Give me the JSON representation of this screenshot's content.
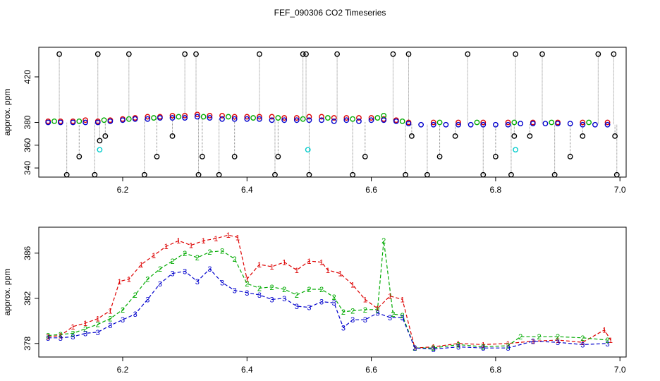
{
  "title": "FEF_090306  CO2 Timeseries",
  "colors": {
    "s1": "#dd0000",
    "s2": "#00aa00",
    "s3": "#0000cc",
    "ref": "#000000",
    "cal": "#00cccc",
    "conn": "#888888"
  },
  "chart_data": [
    {
      "type": "scatter",
      "title": "",
      "xlabel": "",
      "ylabel": "approx. ppm",
      "xlim": [
        6.065,
        7.01
      ],
      "ylim": [
        332,
        446
      ],
      "xticks": [
        "6.2",
        "6.4",
        "6.6",
        "6.8",
        "7.0"
      ],
      "xtick_values": [
        6.2,
        6.4,
        6.6,
        6.8,
        7.0
      ],
      "yticks": [
        "340",
        "360",
        "380",
        "420"
      ],
      "ytick_values": [
        340,
        360,
        380,
        420
      ],
      "series": [
        {
          "marker": "circle",
          "color": "#dd0000",
          "x": [
            6.08,
            6.1,
            6.12,
            6.14,
            6.16,
            6.18,
            6.2,
            6.22,
            6.24,
            6.26,
            6.28,
            6.3,
            6.32,
            6.34,
            6.36,
            6.38,
            6.4,
            6.42,
            6.44,
            6.46,
            6.48,
            6.5,
            6.52,
            6.54,
            6.56,
            6.58,
            6.6,
            6.62,
            6.64,
            6.66,
            6.7,
            6.74,
            6.78,
            6.82,
            6.86,
            6.9,
            6.94,
            6.98
          ],
          "y": [
            381,
            381,
            381,
            382,
            381,
            382,
            383,
            384,
            385,
            385,
            386,
            386,
            387,
            386,
            386,
            385,
            385,
            385,
            385,
            384,
            384,
            385,
            385,
            384,
            384,
            384,
            384,
            383,
            382,
            380,
            380,
            380,
            380,
            380,
            380,
            380,
            380,
            380
          ]
        },
        {
          "marker": "circle",
          "color": "#00aa00",
          "x": [
            6.09,
            6.13,
            6.17,
            6.21,
            6.25,
            6.29,
            6.33,
            6.37,
            6.41,
            6.45,
            6.49,
            6.53,
            6.57,
            6.61,
            6.62,
            6.65,
            6.71,
            6.77,
            6.83,
            6.89,
            6.95
          ],
          "y": [
            381,
            381,
            382,
            383,
            384,
            385,
            385,
            385,
            384,
            384,
            383,
            384,
            383,
            384,
            386,
            381,
            380,
            380,
            380,
            380,
            380
          ]
        },
        {
          "marker": "circle",
          "color": "#0000cc",
          "x": [
            6.08,
            6.1,
            6.12,
            6.14,
            6.16,
            6.18,
            6.2,
            6.22,
            6.24,
            6.26,
            6.28,
            6.3,
            6.32,
            6.34,
            6.36,
            6.38,
            6.4,
            6.42,
            6.44,
            6.46,
            6.48,
            6.5,
            6.52,
            6.54,
            6.56,
            6.58,
            6.6,
            6.62,
            6.64,
            6.66,
            6.68,
            6.7,
            6.72,
            6.74,
            6.76,
            6.78,
            6.8,
            6.82,
            6.84,
            6.86,
            6.88,
            6.9,
            6.92,
            6.94,
            6.96,
            6.98
          ],
          "y": [
            380,
            380,
            380,
            380,
            380,
            381,
            382,
            383,
            383,
            384,
            384,
            384,
            385,
            384,
            383,
            383,
            383,
            383,
            382,
            382,
            382,
            382,
            382,
            381,
            382,
            381,
            382,
            382,
            381,
            379,
            378,
            378,
            378,
            378,
            378,
            378,
            378,
            378,
            379,
            379,
            379,
            379,
            379,
            378,
            378,
            378
          ]
        },
        {
          "marker": "circle",
          "color": "#000000",
          "x": [
            6.098,
            6.11,
            6.13,
            6.155,
            6.16,
            6.163,
            6.172,
            6.21,
            6.235,
            6.255,
            6.28,
            6.3,
            6.318,
            6.322,
            6.328,
            6.355,
            6.38,
            6.42,
            6.445,
            6.45,
            6.49,
            6.495,
            6.5,
            6.545,
            6.57,
            6.59,
            6.635,
            6.655,
            6.66,
            6.665,
            6.69,
            6.71,
            6.735,
            6.755,
            6.78,
            6.8,
            6.825,
            6.83,
            6.832,
            6.855,
            6.875,
            6.895,
            6.92,
            6.94,
            6.965,
            6.99,
            6.992,
            6.995
          ],
          "y": [
            440,
            334,
            350,
            334,
            440,
            364,
            368,
            440,
            334,
            350,
            368,
            440,
            440,
            334,
            350,
            334,
            350,
            440,
            334,
            350,
            440,
            440,
            334,
            440,
            334,
            350,
            440,
            334,
            440,
            368,
            334,
            350,
            368,
            440,
            334,
            350,
            334,
            368,
            440,
            368,
            440,
            334,
            350,
            368,
            440,
            440,
            368,
            334
          ]
        },
        {
          "marker": "circle",
          "color": "#00cccc",
          "x": [
            6.163,
            6.498,
            6.832
          ],
          "y": [
            356,
            356,
            356
          ]
        }
      ]
    },
    {
      "type": "line",
      "title": "",
      "xlabel": "",
      "ylabel": "approx. ppm",
      "xlim": [
        6.065,
        7.01
      ],
      "ylim": [
        376.8,
        388.3
      ],
      "xticks": [
        "6.2",
        "6.4",
        "6.6",
        "6.8",
        "7.0"
      ],
      "xtick_values": [
        6.2,
        6.4,
        6.6,
        6.8,
        7.0
      ],
      "yticks": [
        "378",
        "382",
        "386"
      ],
      "ytick_values": [
        378,
        382,
        386
      ],
      "series": [
        {
          "marker": "1",
          "color": "#dd0000",
          "x": [
            6.08,
            6.1,
            6.12,
            6.14,
            6.16,
            6.18,
            6.195,
            6.21,
            6.23,
            6.25,
            6.27,
            6.29,
            6.31,
            6.33,
            6.35,
            6.37,
            6.385,
            6.4,
            6.42,
            6.44,
            6.46,
            6.48,
            6.5,
            6.52,
            6.53,
            6.55,
            6.57,
            6.59,
            6.61,
            6.63,
            6.65,
            6.67,
            6.7,
            6.74,
            6.78,
            6.82,
            6.86,
            6.9,
            6.94,
            6.975,
            6.985
          ],
          "y": [
            378.6,
            378.7,
            379.5,
            379.8,
            380.2,
            380.9,
            383.5,
            383.7,
            385,
            385.8,
            386.6,
            387.1,
            386.7,
            387.1,
            387.3,
            387.6,
            387.4,
            383.7,
            385.0,
            384.8,
            385.2,
            384.5,
            385.3,
            385.2,
            384.5,
            384.2,
            383.2,
            381.9,
            381.1,
            382.2,
            381.9,
            377.6,
            377.7,
            378.0,
            377.9,
            378.0,
            378.2,
            378.3,
            378.1,
            379.2,
            378.3
          ]
        },
        {
          "marker": "2",
          "color": "#00aa00",
          "x": [
            6.08,
            6.1,
            6.12,
            6.14,
            6.16,
            6.18,
            6.2,
            6.22,
            6.24,
            6.26,
            6.28,
            6.3,
            6.32,
            6.34,
            6.36,
            6.38,
            6.4,
            6.42,
            6.44,
            6.46,
            6.48,
            6.5,
            6.52,
            6.54,
            6.555,
            6.57,
            6.59,
            6.61,
            6.62,
            6.635,
            6.65,
            6.67,
            6.7,
            6.74,
            6.78,
            6.82,
            6.84,
            6.87,
            6.9,
            6.94,
            6.98
          ],
          "y": [
            378.7,
            378.8,
            378.9,
            379.3,
            379.7,
            380.2,
            381.0,
            382.3,
            383.7,
            384.6,
            385.3,
            386.0,
            385.6,
            386.1,
            386.2,
            385.5,
            383.3,
            382.9,
            383.0,
            382.8,
            382.3,
            382.8,
            382.8,
            382.1,
            380.8,
            380.9,
            381.0,
            381.0,
            387.1,
            380.6,
            380.5,
            377.6,
            377.6,
            377.9,
            377.7,
            377.8,
            378.6,
            378.6,
            378.6,
            378.5,
            378.3
          ]
        },
        {
          "marker": "3",
          "color": "#0000cc",
          "x": [
            6.08,
            6.1,
            6.12,
            6.14,
            6.16,
            6.18,
            6.2,
            6.22,
            6.24,
            6.26,
            6.28,
            6.3,
            6.32,
            6.34,
            6.36,
            6.38,
            6.4,
            6.42,
            6.44,
            6.46,
            6.48,
            6.5,
            6.52,
            6.54,
            6.555,
            6.57,
            6.59,
            6.61,
            6.63,
            6.65,
            6.67,
            6.7,
            6.74,
            6.78,
            6.82,
            6.86,
            6.9,
            6.94,
            6.98
          ],
          "y": [
            378.5,
            378.5,
            378.6,
            378.9,
            379.0,
            379.6,
            380.1,
            380.6,
            381.9,
            383.3,
            384.2,
            384.4,
            383.5,
            384.6,
            383.4,
            382.7,
            382.5,
            382.3,
            381.9,
            382.0,
            381.3,
            381.2,
            381.7,
            381.6,
            379.4,
            380.1,
            380.1,
            380.7,
            380.3,
            380.3,
            377.6,
            377.5,
            377.7,
            377.6,
            377.6,
            378.2,
            378.1,
            377.9,
            378.0
          ]
        }
      ]
    }
  ]
}
